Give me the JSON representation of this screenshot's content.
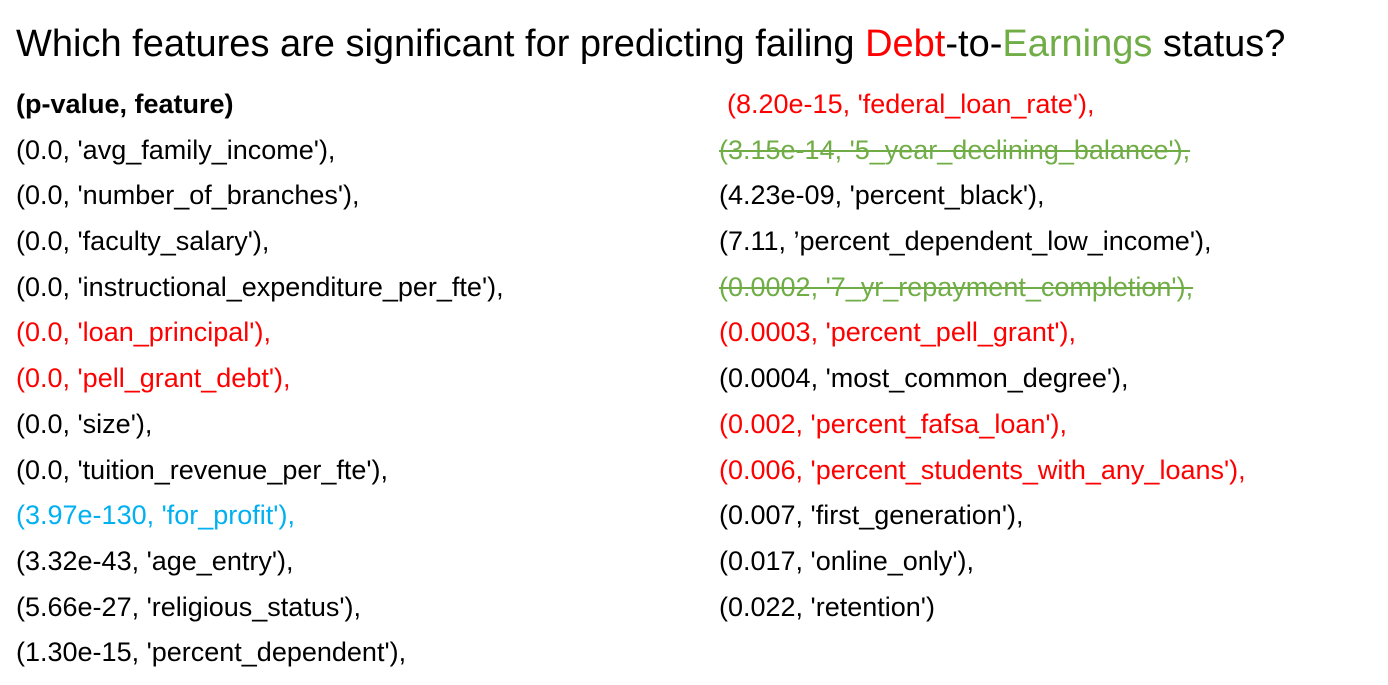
{
  "colors": {
    "red": "#ff0000",
    "green": "#70ad47",
    "blue": "#00b0f0",
    "text": "#000000"
  },
  "title": {
    "part1": "Which features are significant for predicting failing ",
    "debt": "Debt",
    "mid": "-to-",
    "earnings": "Earnings",
    "part2": " status?"
  },
  "header": "(p-value, feature)",
  "left_column": [
    "(0.0, 'avg_family_income'),",
    "(0.0, 'number_of_branches'),",
    "(0.0, 'faculty_salary'),",
    "(0.0, 'instructional_expenditure_per_fte'),",
    "(0.0, 'loan_principal'),",
    "(0.0, 'pell_grant_debt'),",
    "(0.0, 'size'),",
    "(0.0, 'tuition_revenue_per_fte'),",
    "(3.97e-130, 'for_profit'),",
    "(3.32e-43, 'age_entry'),",
    "(5.66e-27, 'religious_status'),",
    "(1.30e-15, 'percent_dependent'),"
  ],
  "right_column": [
    "(8.20e-15, 'federal_loan_rate'),",
    "(3.15e-14, '5_year_declining_balance'),",
    "(4.23e-09, 'percent_black'),",
    "(7.11, ’percent_dependent_low_income'),",
    "(0.0002, '7_yr_repayment_completion'),",
    "(0.0003, 'percent_pell_grant'),",
    "(0.0004, 'most_common_degree'),",
    "(0.002, 'percent_fafsa_loan'),",
    "(0.006, 'percent_students_with_any_loans'),",
    "(0.007, 'first_generation'),",
    "(0.017, 'online_only'),",
    "(0.022, 'retention')"
  ]
}
